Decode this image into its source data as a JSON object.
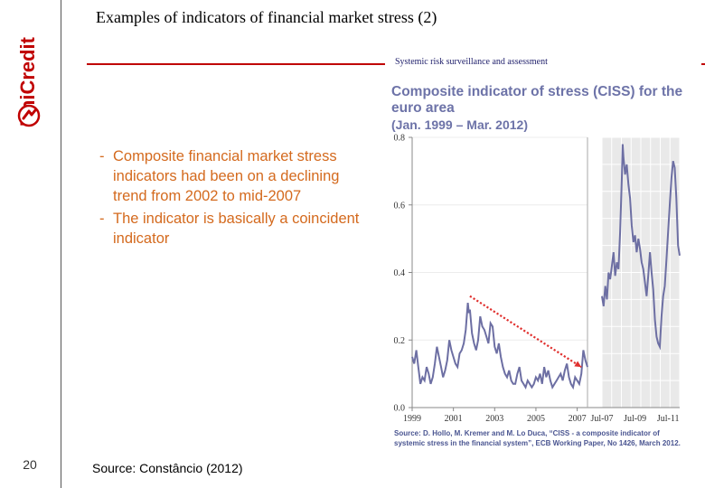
{
  "slide": {
    "brand": "UniCredit",
    "title": "Examples of indicators of financial market stress (2)",
    "subheading": "Systemic risk surveillance and assessment",
    "bullets": [
      "Composite financial market stress indicators had been on a declining trend from 2002 to mid-2007",
      "The indicator is basically a coincident indicator"
    ],
    "bullet_marker": "-",
    "page_number": "20",
    "footer_source": "Source: Constâncio (2012)"
  },
  "chart_data": {
    "type": "line",
    "title_line1": "Composite indicator of stress (CISS) for the",
    "title_line2": "euro area",
    "period": "(Jan. 1999 – Mar. 2012)",
    "source_note": "Source: D. Hollo, M. Kremer and M. Lo Duca, “CISS - a composite indicator of systemic stress in the financial system”, ECB Working Paper, No 1426, March 2012.",
    "ylim": [
      0.0,
      0.8
    ],
    "yticks": [
      "0.0",
      "0.2",
      "0.4",
      "0.6",
      "0.8"
    ],
    "xticks_main": [
      "1999",
      "2001",
      "2003",
      "2005",
      "2007"
    ],
    "xticks_zoom": [
      "Jul-07",
      "Jul-09",
      "Jul-11"
    ],
    "series": [
      {
        "x": [
          1999.0,
          1999.1,
          1999.2,
          1999.3,
          1999.4,
          1999.5,
          1999.6,
          1999.7,
          1999.8,
          1999.9,
          2000.0,
          2000.1,
          2000.2,
          2000.3,
          2000.4,
          2000.5,
          2000.6,
          2000.7,
          2000.8,
          2000.9,
          2001.0,
          2001.1,
          2001.2,
          2001.3,
          2001.4,
          2001.5,
          2001.6,
          2001.7,
          2001.75,
          2001.8,
          2001.9,
          2002.0,
          2002.1,
          2002.2,
          2002.3,
          2002.4,
          2002.5,
          2002.6,
          2002.7,
          2002.8,
          2002.9,
          2003.0,
          2003.1,
          2003.2,
          2003.3,
          2003.4,
          2003.5,
          2003.6,
          2003.7,
          2003.8,
          2003.9,
          2004.0,
          2004.1,
          2004.2,
          2004.3,
          2004.4,
          2004.5,
          2004.6,
          2004.7,
          2004.8,
          2004.9,
          2005.0,
          2005.1,
          2005.2,
          2005.3,
          2005.4,
          2005.5,
          2005.6,
          2005.7,
          2005.8,
          2005.9,
          2006.0,
          2006.1,
          2006.2,
          2006.3,
          2006.4,
          2006.5,
          2006.6,
          2006.7,
          2006.8,
          2006.9,
          2007.0,
          2007.1,
          2007.2,
          2007.3,
          2007.4,
          2007.5
        ],
        "y": [
          0.15,
          0.13,
          0.17,
          0.12,
          0.07,
          0.09,
          0.08,
          0.12,
          0.1,
          0.07,
          0.09,
          0.13,
          0.18,
          0.15,
          0.12,
          0.09,
          0.11,
          0.14,
          0.2,
          0.17,
          0.15,
          0.13,
          0.12,
          0.16,
          0.17,
          0.19,
          0.23,
          0.31,
          0.28,
          0.29,
          0.22,
          0.19,
          0.17,
          0.2,
          0.27,
          0.24,
          0.23,
          0.21,
          0.19,
          0.25,
          0.24,
          0.18,
          0.16,
          0.19,
          0.15,
          0.12,
          0.1,
          0.09,
          0.11,
          0.08,
          0.07,
          0.07,
          0.1,
          0.12,
          0.08,
          0.07,
          0.06,
          0.08,
          0.07,
          0.06,
          0.07,
          0.09,
          0.08,
          0.1,
          0.07,
          0.12,
          0.09,
          0.11,
          0.08,
          0.06,
          0.07,
          0.08,
          0.09,
          0.1,
          0.08,
          0.11,
          0.13,
          0.09,
          0.07,
          0.06,
          0.09,
          0.08,
          0.07,
          0.1,
          0.17,
          0.14,
          0.12
        ]
      }
    ],
    "zoom_series": {
      "x": [
        2007.5,
        2007.6,
        2007.7,
        2007.8,
        2007.9,
        2008.0,
        2008.1,
        2008.2,
        2008.3,
        2008.4,
        2008.5,
        2008.6,
        2008.7,
        2008.75,
        2008.8,
        2008.9,
        2009.0,
        2009.1,
        2009.2,
        2009.3,
        2009.4,
        2009.5,
        2009.6,
        2009.7,
        2009.8,
        2009.9,
        2010.0,
        2010.1,
        2010.2,
        2010.3,
        2010.4,
        2010.5,
        2010.6,
        2010.7,
        2010.8,
        2010.9,
        2011.0,
        2011.1,
        2011.2,
        2011.3,
        2011.4,
        2011.5,
        2011.6,
        2011.7,
        2011.8,
        2011.9,
        2012.0,
        2012.1,
        2012.2
      ],
      "y": [
        0.33,
        0.3,
        0.36,
        0.32,
        0.4,
        0.38,
        0.42,
        0.46,
        0.39,
        0.43,
        0.41,
        0.52,
        0.68,
        0.78,
        0.74,
        0.69,
        0.72,
        0.66,
        0.62,
        0.54,
        0.49,
        0.51,
        0.46,
        0.5,
        0.47,
        0.43,
        0.41,
        0.37,
        0.33,
        0.39,
        0.46,
        0.4,
        0.35,
        0.26,
        0.21,
        0.19,
        0.18,
        0.27,
        0.33,
        0.36,
        0.44,
        0.52,
        0.6,
        0.68,
        0.73,
        0.71,
        0.62,
        0.48,
        0.45
      ]
    },
    "trend_line": {
      "x": [
        2001.8,
        2007.2
      ],
      "y": [
        0.33,
        0.12
      ]
    },
    "colors": {
      "line": "#6d6fa3",
      "trend": "#e0302e",
      "title": "#6d73a8",
      "bullets": "#d46a1e",
      "accent": "#c00000"
    }
  }
}
